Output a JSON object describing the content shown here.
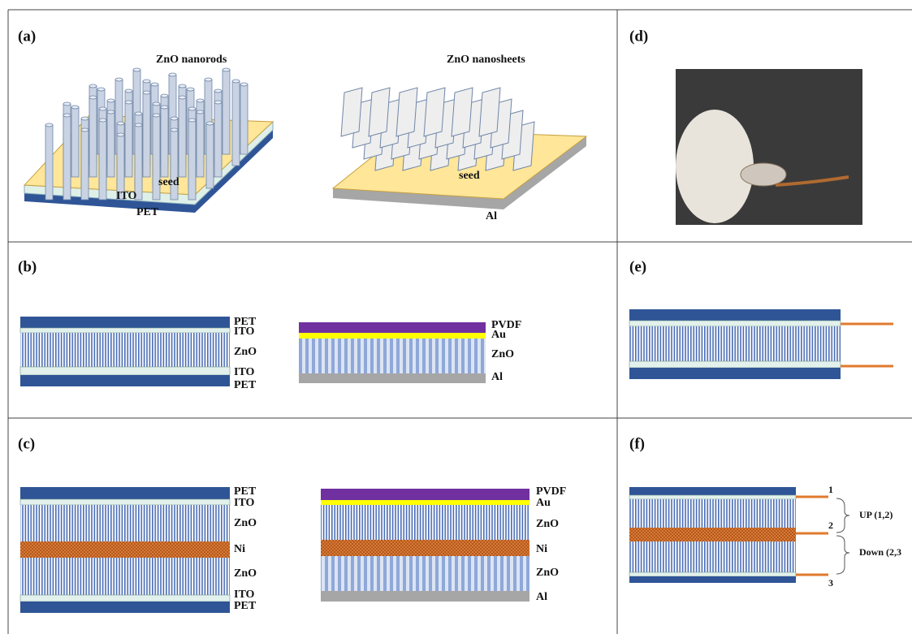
{
  "panels": {
    "a": {
      "label": "(a)",
      "left": {
        "nanostructure": "ZnO nanorods",
        "layers": [
          "seed",
          "ITO",
          "PET"
        ]
      },
      "right": {
        "nanostructure": "ZnO nanosheets",
        "layers": [
          "seed",
          "Al"
        ]
      }
    },
    "b": {
      "label": "(b)",
      "left_layers": [
        "PET",
        "ITO",
        "ZnO",
        "ITO",
        "PET"
      ],
      "right_layers": [
        "PVDF",
        "Au",
        "ZnO",
        "Al"
      ]
    },
    "c": {
      "label": "(c)",
      "left_layers": [
        "PET",
        "ITO",
        "ZnO",
        "Ni",
        "ZnO",
        "ITO",
        "PET"
      ],
      "right_layers": [
        "PVDF",
        "Au",
        "ZnO",
        "Ni",
        "ZnO",
        "Al"
      ]
    },
    "d": {
      "label": "(d)"
    },
    "e": {
      "label": "(e)"
    },
    "f": {
      "label": "(f)",
      "terminals": [
        "1",
        "2",
        "3"
      ],
      "groups": [
        "UP (1,2)",
        "Down (2,3"
      ]
    }
  }
}
